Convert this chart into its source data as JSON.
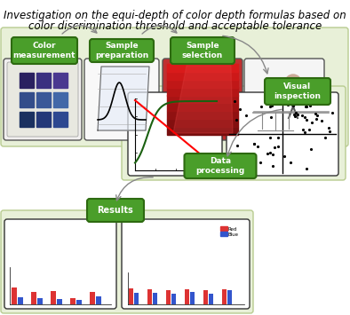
{
  "title_line1": "Investigation on the equi-depth of color depth formulas based on",
  "title_line2": "color discrimination threshold and acceptable tolerance",
  "title_fontsize": 8.5,
  "panel_bg": "#e8f0d8",
  "panel_edge": "#b8cc90",
  "green_face": "#4a9e2a",
  "green_edge": "#2d6a10",
  "box_labels": {
    "color_meas": "Color\nmeasurement",
    "sample_prep": "Sample\npreparation",
    "sample_sel": "Sample\nselection",
    "visual_insp": "Visual\ninspection",
    "data_proc": "Data\nprocessing",
    "results": "Results"
  },
  "arrow_color": "#888888",
  "bar_red": "#dd3333",
  "bar_blue": "#3355cc"
}
